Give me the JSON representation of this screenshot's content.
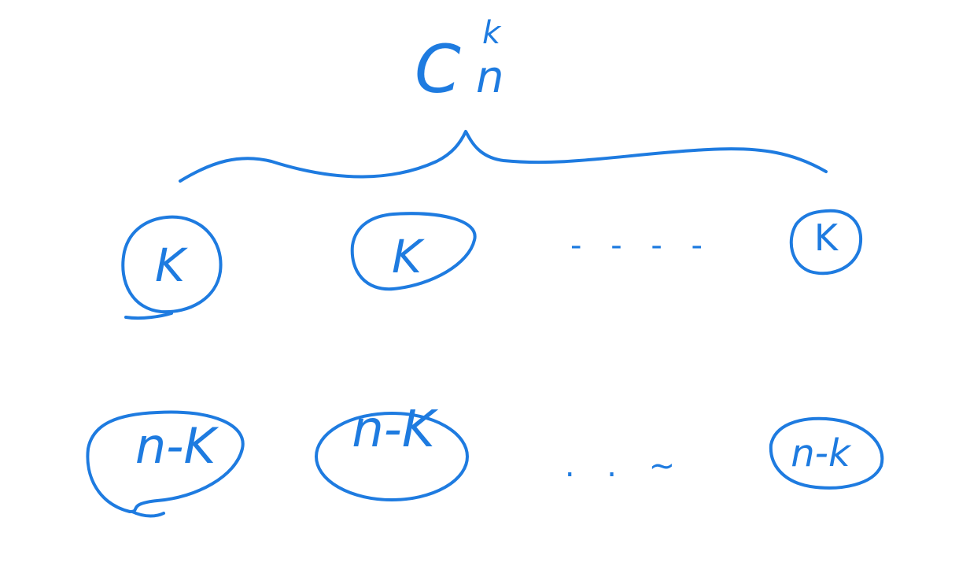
{
  "ink_color": "#1e7be0",
  "header": {
    "main": "C",
    "subscript": "n",
    "superscript": "k"
  },
  "top_row": {
    "items": [
      "K",
      "K",
      "K"
    ],
    "ellipsis": "- - - -"
  },
  "bottom_row": {
    "items": [
      "n-K",
      "n-K",
      "n-k"
    ],
    "ellipsis": ". . ~"
  }
}
